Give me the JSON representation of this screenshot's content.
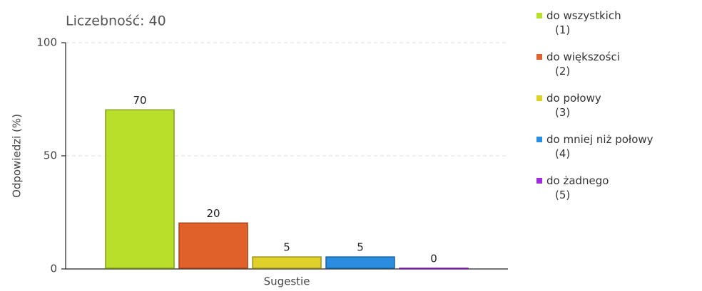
{
  "chart_data": {
    "type": "bar",
    "title": "Liczebność: 40",
    "y_label": "Odpowiedzi (%)",
    "categories": [
      "Sugestie"
    ],
    "series": [
      {
        "name": "do wszystkich (1)",
        "color": "#b8e02a",
        "values": [
          70
        ]
      },
      {
        "name": "do większości (2)",
        "color": "#e0622a",
        "values": [
          20
        ]
      },
      {
        "name": "do połowy (3)",
        "color": "#e0d02a",
        "values": [
          5
        ]
      },
      {
        "name": "do mniej niż połowy (4)",
        "color": "#2a8de0",
        "values": [
          5
        ]
      },
      {
        "name": "do żadnego (5)",
        "color": "#a02ae0",
        "values": [
          0
        ]
      }
    ],
    "ylim": [
      0,
      100
    ],
    "yticks": [
      0,
      50,
      100
    ],
    "grid": true,
    "legend": "right"
  }
}
